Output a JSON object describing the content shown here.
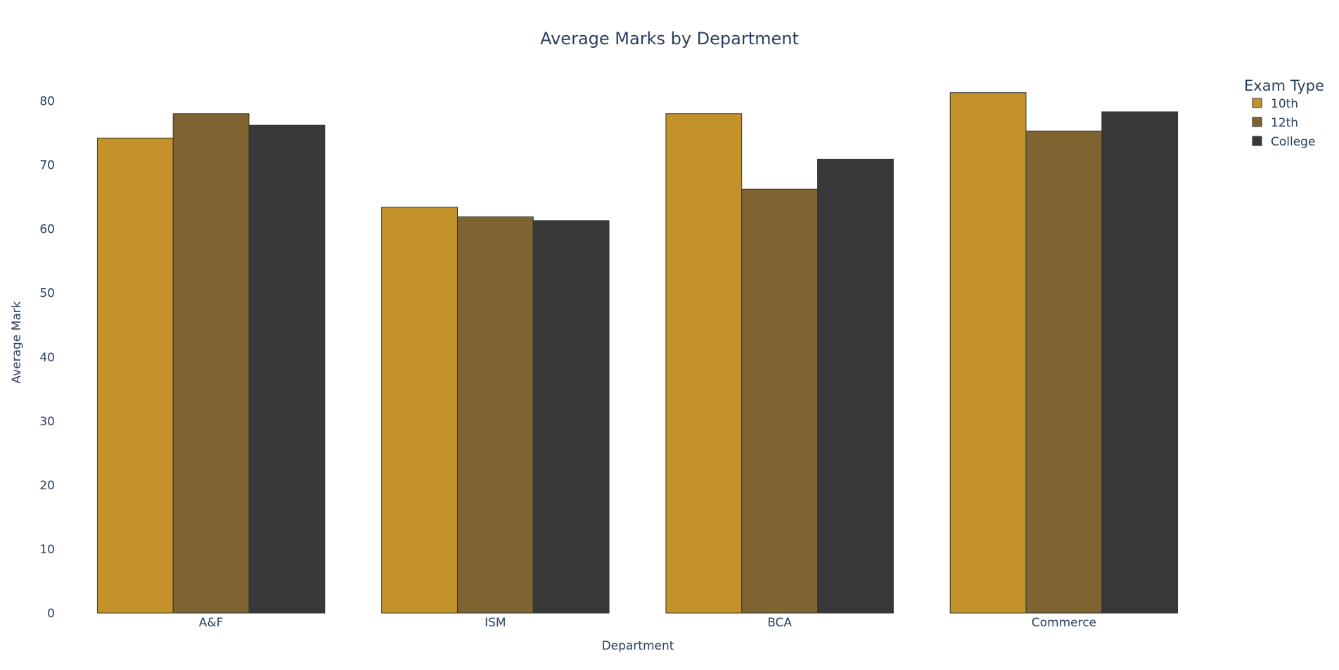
{
  "chart_data": {
    "type": "bar",
    "title": "Average Marks by Department",
    "xlabel": "Department",
    "ylabel": "Average Mark",
    "categories": [
      "A&F",
      "ISM",
      "BCA",
      "Commerce"
    ],
    "series": [
      {
        "name": "10th",
        "color": "#c4922b",
        "values": [
          74.2,
          63.4,
          78.0,
          81.3
        ]
      },
      {
        "name": "12th",
        "color": "#7f6431",
        "values": [
          78.0,
          61.9,
          66.2,
          75.3
        ]
      },
      {
        "name": "College",
        "color": "#383838",
        "values": [
          76.2,
          61.3,
          70.9,
          78.3
        ]
      }
    ],
    "ylim": [
      0,
      85
    ],
    "yticks": [
      0,
      10,
      20,
      30,
      40,
      50,
      60,
      70,
      80
    ],
    "legend": {
      "title": "Exam Type",
      "position": "top-right"
    },
    "grid": false,
    "bar_outline_color": "#333333"
  }
}
